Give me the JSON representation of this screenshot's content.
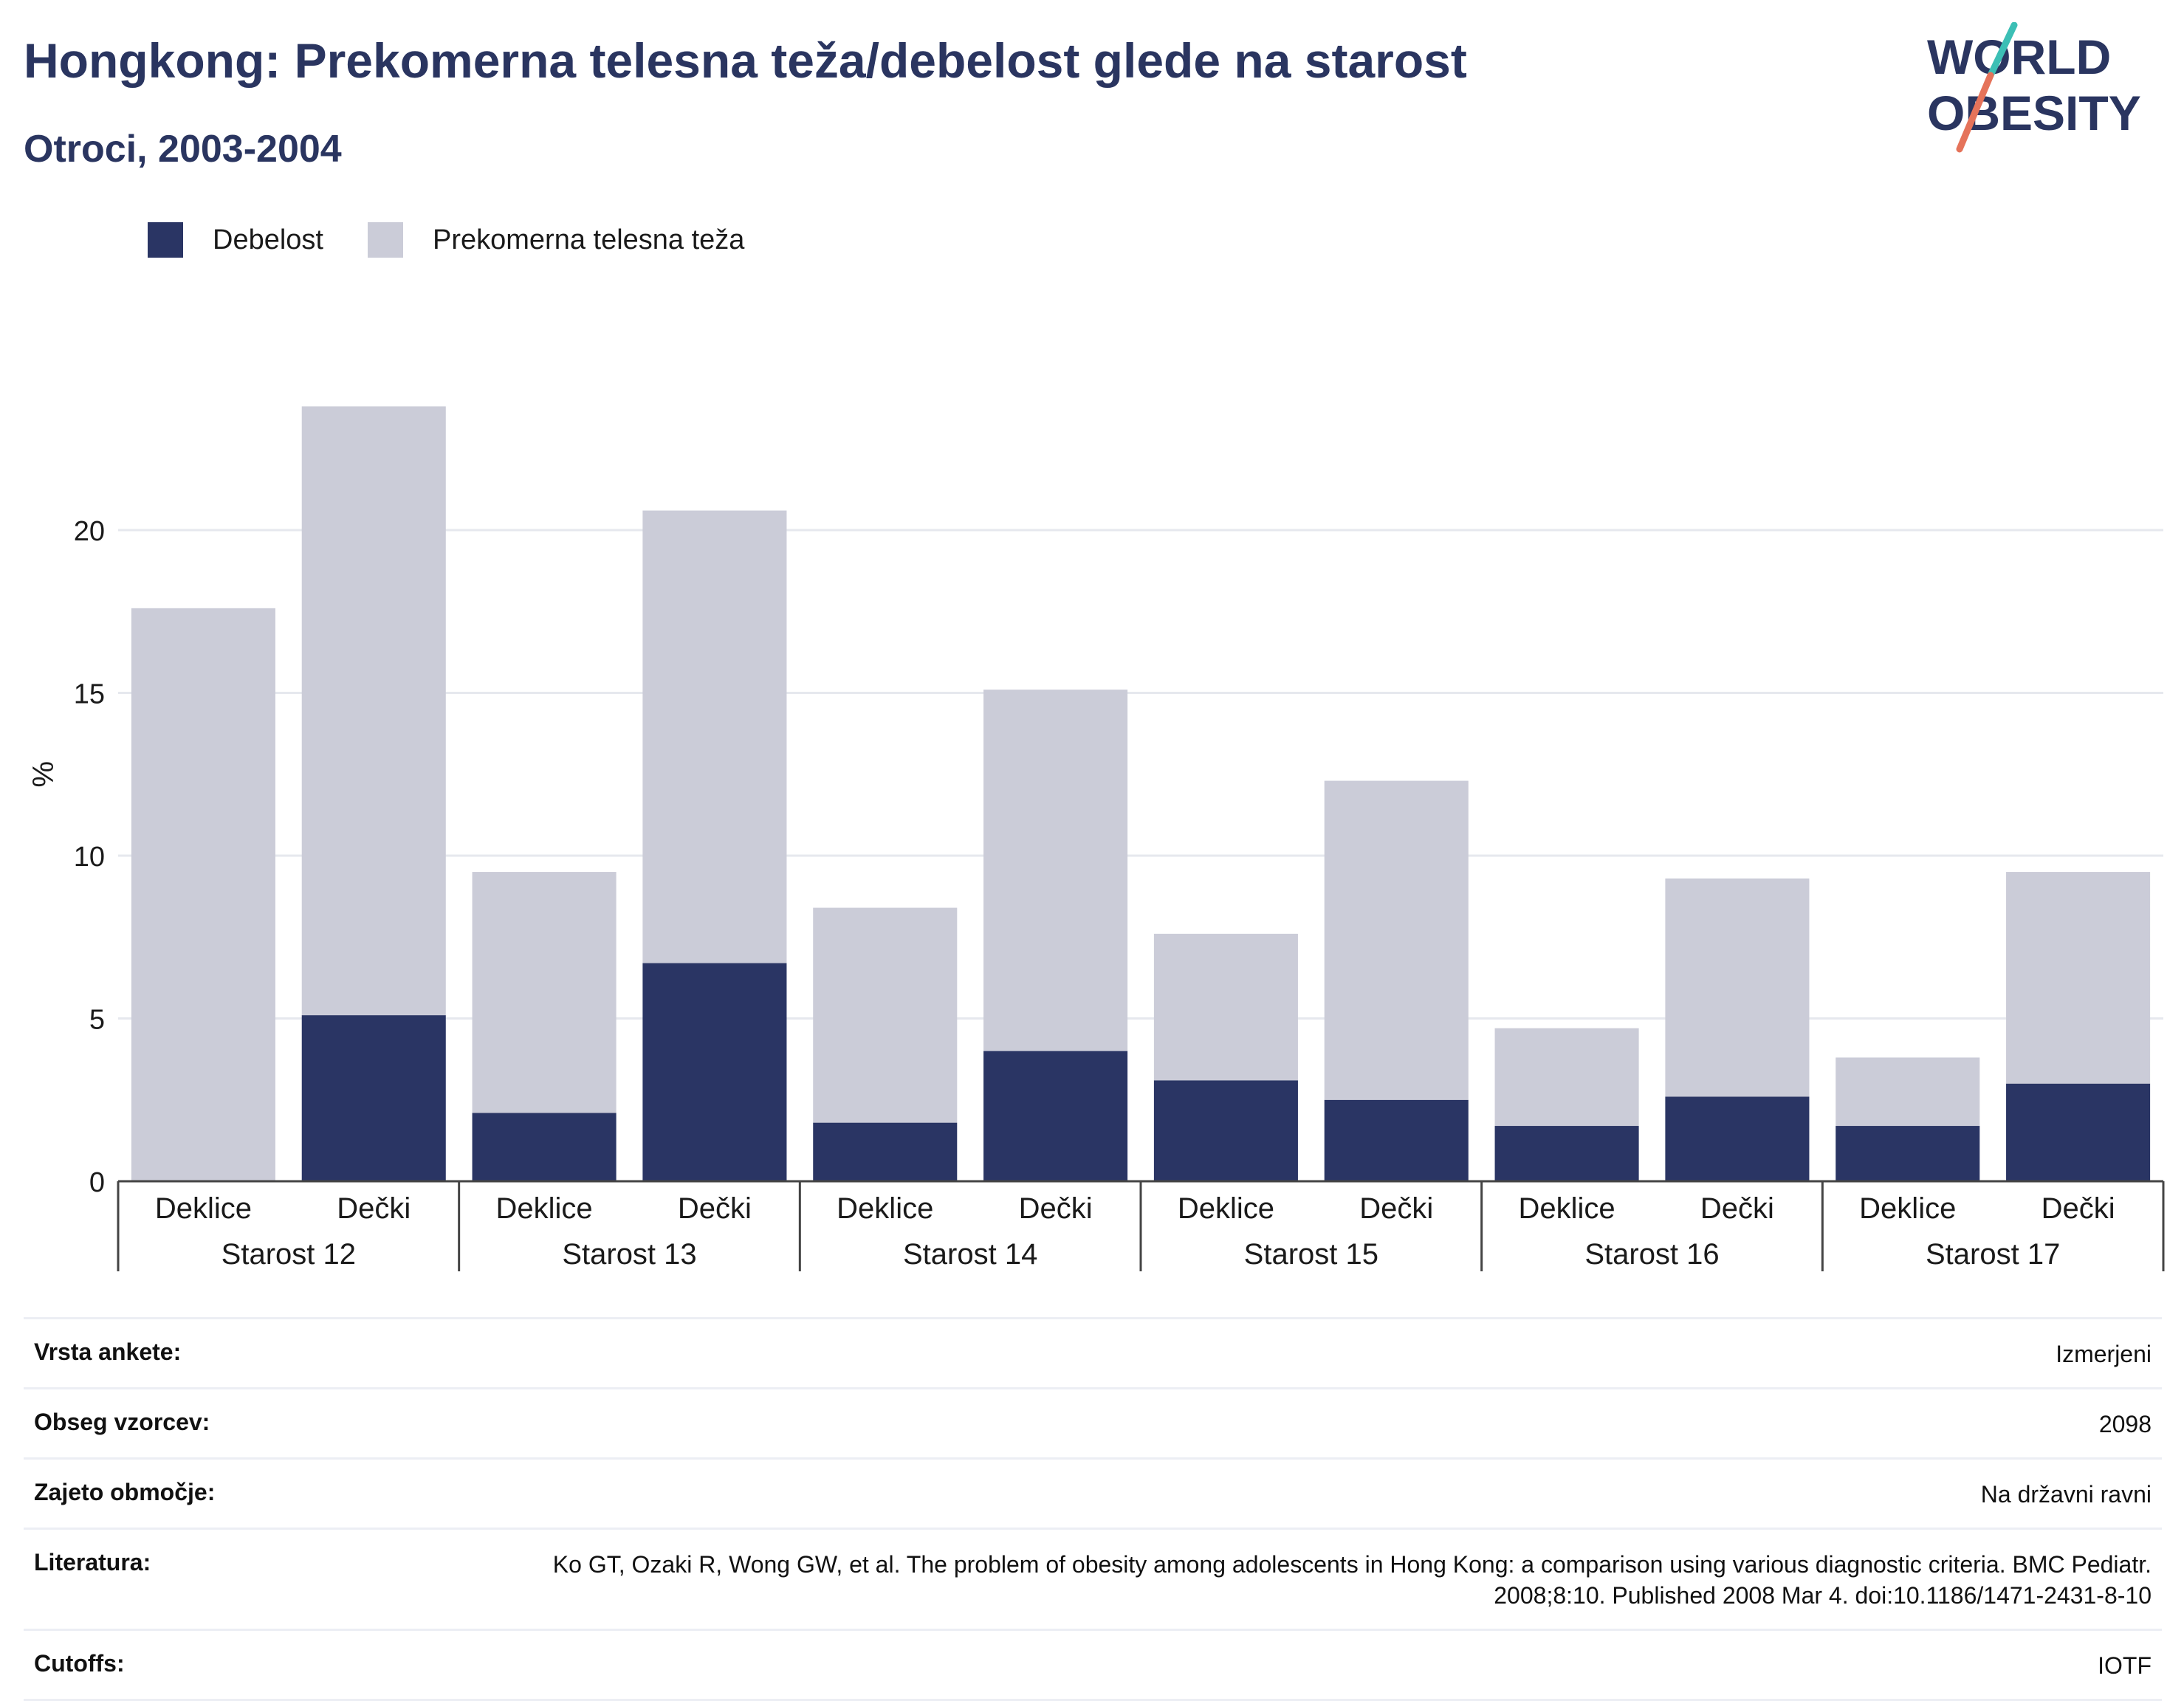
{
  "title": "Hongkong: Prekomerna telesna teža/debelost glede na starost",
  "subtitle": "Otroci, 2003-2004",
  "logo": {
    "line1": "WORLD",
    "line2": "OBESITY",
    "accent_colors": [
      "#3cbfb5",
      "#e5735a"
    ]
  },
  "colors": {
    "obesity": "#2a3564",
    "overweight": "#cbccd8",
    "title": "#2a3560"
  },
  "legend": [
    {
      "label": "Debelost",
      "color": "#2a3564"
    },
    {
      "label": "Prekomerna telesna teža",
      "color": "#cbccd8"
    }
  ],
  "chart_data": {
    "type": "bar",
    "stacked": true,
    "ylabel": "%",
    "ylim": [
      0,
      26
    ],
    "yticks": [
      0,
      5,
      10,
      15,
      20
    ],
    "groups": [
      {
        "label": "Starost 12",
        "categories": [
          "Deklice",
          "Dečki"
        ]
      },
      {
        "label": "Starost 13",
        "categories": [
          "Deklice",
          "Dečki"
        ]
      },
      {
        "label": "Starost 14",
        "categories": [
          "Deklice",
          "Dečki"
        ]
      },
      {
        "label": "Starost 15",
        "categories": [
          "Deklice",
          "Dečki"
        ]
      },
      {
        "label": "Starost 16",
        "categories": [
          "Deklice",
          "Dečki"
        ]
      },
      {
        "label": "Starost 17",
        "categories": [
          "Deklice",
          "Dečki"
        ]
      }
    ],
    "series": [
      {
        "name": "Debelost",
        "values": [
          0,
          5.1,
          2.1,
          6.7,
          1.8,
          4.0,
          3.1,
          2.5,
          1.7,
          2.6,
          1.7,
          3.0
        ]
      },
      {
        "name": "Prekomerna telesna teža",
        "values": [
          17.6,
          18.7,
          7.4,
          13.9,
          6.6,
          11.1,
          4.5,
          9.8,
          3.0,
          6.7,
          2.1,
          6.5
        ]
      }
    ],
    "grid": true
  },
  "info": [
    {
      "key": "Vrsta ankete:",
      "value": "Izmerjeni"
    },
    {
      "key": "Obseg vzorcev:",
      "value": "2098"
    },
    {
      "key": "Zajeto območje:",
      "value": "Na državni ravni"
    },
    {
      "key": "Literatura:",
      "value": "Ko GT, Ozaki R, Wong GW, et al. The problem of obesity among adolescents in Hong Kong: a comparison using various diagnostic criteria. BMC Pediatr. 2008;8:10. Published 2008 Mar 4. doi:10.1186/1471-2431-8-10"
    },
    {
      "key": "Cutoffs:",
      "value": "IOTF"
    }
  ]
}
